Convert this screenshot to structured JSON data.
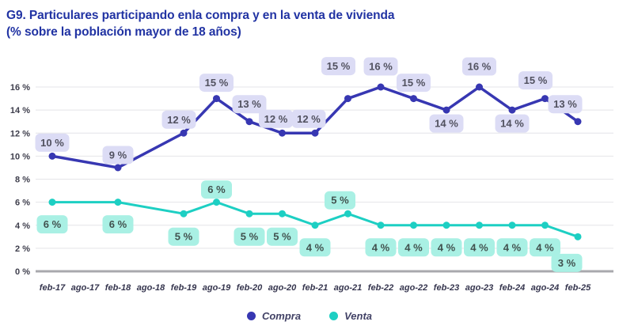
{
  "title": {
    "line1": "G9. Particulares participando enla compra y en la venta de vivienda",
    "line2": "(% sobre la población mayor de 18 años)"
  },
  "colors": {
    "title_text": "#2133a3",
    "grid_line": "#e4e4e8",
    "zero_axis_line": "#a9a9ad",
    "y_tick_text": "#3e3e4c",
    "x_tick_text": "#35354e",
    "legend_text": "#424266",
    "compra_line": "#3737b2",
    "compra_pill_bg": "#dcdcf5",
    "compra_pill_text": "#51515f",
    "venta_line": "#1dcfc3",
    "venta_pill_bg": "#a9f0e4",
    "venta_pill_text": "#41514e"
  },
  "chart_data": {
    "type": "line",
    "title": "G9. Particulares participando enla compra y en la venta de vivienda (% sobre la población mayor de 18 años)",
    "xlabel": "",
    "ylabel": "",
    "ylim": [
      0,
      16
    ],
    "ytick_step": 2,
    "ytick_suffix": " %",
    "grid": true,
    "legend_position": "bottom",
    "categories": [
      "feb-17",
      "ago-17",
      "feb-18",
      "ago-18",
      "feb-19",
      "ago-19",
      "feb-20",
      "ago-20",
      "feb-21",
      "ago-21",
      "feb-22",
      "ago-22",
      "feb-23",
      "ago-23",
      "feb-24",
      "ago-24",
      "feb-25"
    ],
    "series": [
      {
        "name": "Compra",
        "color": "#3737b2",
        "points": [
          {
            "x": "feb-17",
            "y": 10,
            "label": "10 %",
            "dx": 0,
            "dy": -17
          },
          {
            "x": "feb-18",
            "y": 9,
            "label": "9 %",
            "dx": 0,
            "dy": -16
          },
          {
            "x": "feb-19",
            "y": 12,
            "label": "12 %",
            "dx": -6,
            "dy": -17
          },
          {
            "x": "ago-19",
            "y": 15,
            "label": "15 %",
            "dx": 0,
            "dy": -20
          },
          {
            "x": "feb-20",
            "y": 13,
            "label": "13 %",
            "dx": 0,
            "dy": -22
          },
          {
            "x": "ago-20",
            "y": 12,
            "label": "12 %",
            "dx": -8,
            "dy": -18
          },
          {
            "x": "feb-21",
            "y": 12,
            "label": "12 %",
            "dx": -8,
            "dy": -18
          },
          {
            "x": "ago-21",
            "y": 15,
            "label": "15 %",
            "dx": -12,
            "dy": -41
          },
          {
            "x": "feb-22",
            "y": 16,
            "label": "16 %",
            "dx": 0,
            "dy": -26
          },
          {
            "x": "ago-22",
            "y": 15,
            "label": "15 %",
            "dx": 0,
            "dy": -20
          },
          {
            "x": "feb-23",
            "y": 14,
            "label": "14 %",
            "dx": 0,
            "dy": 17
          },
          {
            "x": "ago-23",
            "y": 16,
            "label": "16 %",
            "dx": 0,
            "dy": -26
          },
          {
            "x": "feb-24",
            "y": 14,
            "label": "14 %",
            "dx": 0,
            "dy": 17
          },
          {
            "x": "ago-24",
            "y": 15,
            "label": "15 %",
            "dx": -12,
            "dy": -23
          },
          {
            "x": "feb-25",
            "y": 13,
            "label": "13 %",
            "dx": -16,
            "dy": -22
          }
        ]
      },
      {
        "name": "Venta",
        "color": "#1dcfc3",
        "points": [
          {
            "x": "feb-17",
            "y": 6,
            "label": "6 %",
            "dx": 0,
            "dy": 28
          },
          {
            "x": "feb-18",
            "y": 6,
            "label": "6 %",
            "dx": 0,
            "dy": 28
          },
          {
            "x": "feb-19",
            "y": 5,
            "label": "5 %",
            "dx": 0,
            "dy": 29
          },
          {
            "x": "ago-19",
            "y": 6,
            "label": "6 %",
            "dx": 0,
            "dy": -16
          },
          {
            "x": "feb-20",
            "y": 5,
            "label": "5 %",
            "dx": 0,
            "dy": 29
          },
          {
            "x": "ago-20",
            "y": 5,
            "label": "5 %",
            "dx": 0,
            "dy": 29
          },
          {
            "x": "feb-21",
            "y": 4,
            "label": "4 %",
            "dx": 0,
            "dy": 28
          },
          {
            "x": "ago-21",
            "y": 5,
            "label": "5 %",
            "dx": -10,
            "dy": -17
          },
          {
            "x": "feb-22",
            "y": 4,
            "label": "4 %",
            "dx": 0,
            "dy": 28
          },
          {
            "x": "ago-22",
            "y": 4,
            "label": "4 %",
            "dx": 0,
            "dy": 28
          },
          {
            "x": "feb-23",
            "y": 4,
            "label": "4 %",
            "dx": 0,
            "dy": 28
          },
          {
            "x": "ago-23",
            "y": 4,
            "label": "4 %",
            "dx": 0,
            "dy": 28
          },
          {
            "x": "feb-24",
            "y": 4,
            "label": "4 %",
            "dx": 0,
            "dy": 28
          },
          {
            "x": "ago-24",
            "y": 4,
            "label": "4 %",
            "dx": 0,
            "dy": 28
          },
          {
            "x": "feb-25",
            "y": 3,
            "label": "3 %",
            "dx": -14,
            "dy": 33
          }
        ]
      }
    ]
  }
}
